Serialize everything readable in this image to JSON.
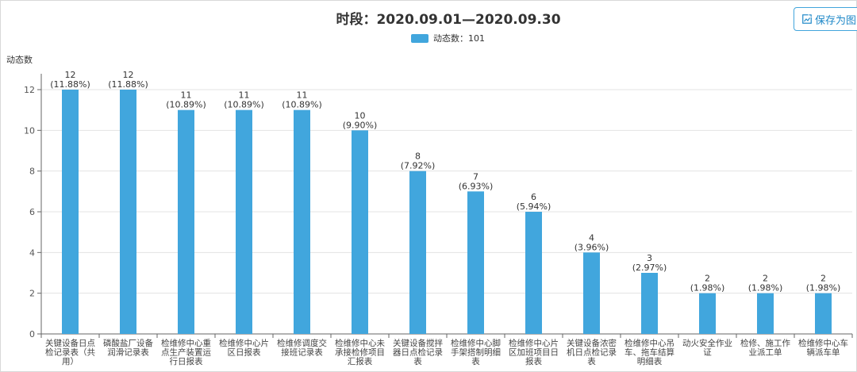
{
  "title": "时段：2020.09.01—2020.09.30",
  "save_button": {
    "label": "保存为图",
    "icon": "save-image-icon"
  },
  "colors": {
    "bar": "#41a6dd",
    "grid": "#e3e3e3",
    "axis": "#666666"
  },
  "chart_data": {
    "type": "bar",
    "title": "时段：2020.09.01—2020.09.30",
    "ylabel": "动态数",
    "xlabel": "",
    "ylim": [
      0,
      12
    ],
    "yticks": [
      0,
      2,
      4,
      6,
      8,
      10,
      12
    ],
    "grid": true,
    "legend": {
      "label": "动态数：101",
      "position": "top-center"
    },
    "categories": [
      [
        "关键设备日点",
        "检记录表（共",
        "用）"
      ],
      [
        "磷酸盐厂设备",
        "润滑记录表"
      ],
      [
        "检维修中心重",
        "点生产装置运",
        "行日报表"
      ],
      [
        "检维修中心片",
        "区日报表"
      ],
      [
        "检维修调度交",
        "接班记录表"
      ],
      [
        "检维修中心未",
        "承接检修项目",
        "汇报表"
      ],
      [
        "关键设备搅拌",
        "器日点检记录",
        "表"
      ],
      [
        "检维修中心脚",
        "手架搭制明细",
        "表"
      ],
      [
        "检维修中心片",
        "区加班项目日",
        "报表"
      ],
      [
        "关键设备浓密",
        "机日点检记录",
        "表"
      ],
      [
        "检维修中心吊",
        "车、拖车结算",
        "明细表"
      ],
      [
        "动火安全作业",
        "证"
      ],
      [
        "检修、施工作",
        "业派工单"
      ],
      [
        "检维修中心车",
        "辆派车单"
      ]
    ],
    "values": [
      12,
      12,
      11,
      11,
      11,
      10,
      8,
      7,
      6,
      4,
      3,
      2,
      2,
      2
    ],
    "value_labels": [
      [
        "12",
        "(11.88%)"
      ],
      [
        "12",
        "(11.88%)"
      ],
      [
        "11",
        "(10.89%)"
      ],
      [
        "11",
        "(10.89%)"
      ],
      [
        "11",
        "(10.89%)"
      ],
      [
        "10",
        "(9.90%)"
      ],
      [
        "8",
        "(7.92%)"
      ],
      [
        "7",
        "(6.93%)"
      ],
      [
        "6",
        "(5.94%)"
      ],
      [
        "4",
        "(3.96%)"
      ],
      [
        "3",
        "(2.97%)"
      ],
      [
        "2",
        "(1.98%)"
      ],
      [
        "2",
        "(1.98%)"
      ],
      [
        "2",
        "(1.98%)"
      ]
    ]
  }
}
